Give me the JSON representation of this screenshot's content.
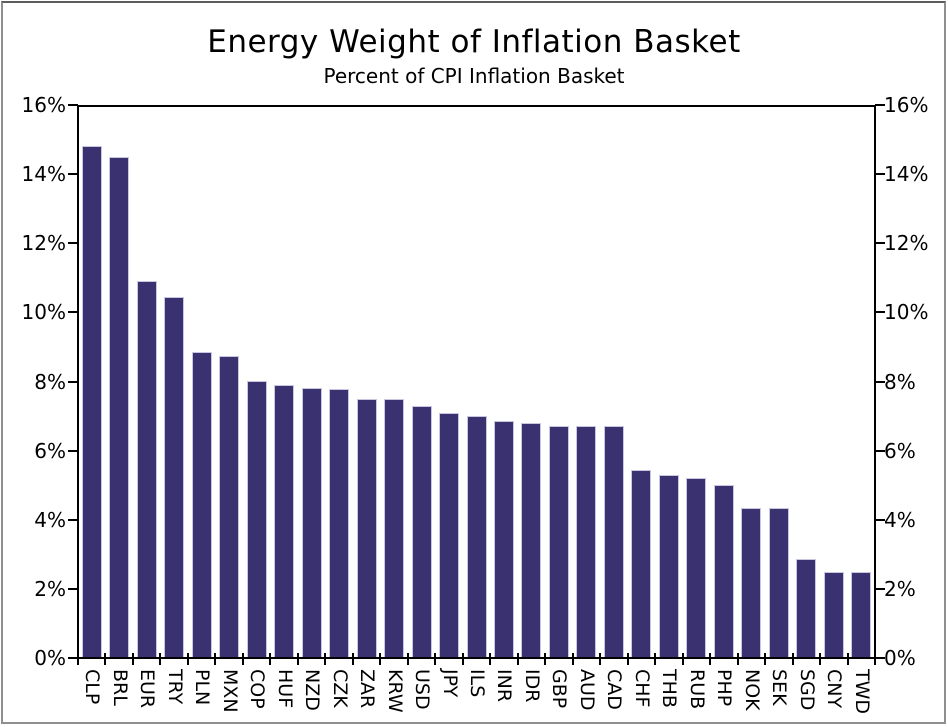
{
  "chart_data": {
    "type": "bar",
    "title": "Energy Weight of Inflation Basket",
    "subtitle": "Percent of CPI Inflation Basket",
    "categories": [
      "CLP",
      "BRL",
      "EUR",
      "TRY",
      "PLN",
      "MXN",
      "COP",
      "HUF",
      "NZD",
      "CZK",
      "ZAR",
      "KRW",
      "USD",
      "JPY",
      "ILS",
      "INR",
      "IDR",
      "GBP",
      "AUD",
      "CAD",
      "CHF",
      "THB",
      "RUB",
      "PHP",
      "NOK",
      "SEK",
      "SGD",
      "CNY",
      "TWD"
    ],
    "values": [
      14.8,
      14.5,
      10.9,
      10.45,
      8.85,
      8.75,
      8.0,
      7.9,
      7.8,
      7.78,
      7.5,
      7.48,
      7.3,
      7.1,
      7.0,
      6.85,
      6.8,
      6.72,
      6.7,
      6.7,
      5.45,
      5.3,
      5.2,
      5.0,
      4.35,
      4.35,
      2.85,
      2.5,
      2.5
    ],
    "value_unit": "%",
    "xlabel": "",
    "ylabel": "",
    "ylim": [
      0,
      16
    ],
    "ytick_step": 2,
    "ytick_labels": [
      "0%",
      "2%",
      "4%",
      "6%",
      "8%",
      "10%",
      "12%",
      "14%",
      "16%"
    ],
    "y_axis_sides": [
      "left",
      "right"
    ],
    "x_label_rotation_deg": 90,
    "grid": false,
    "legend": "none",
    "colors": {
      "bar_fill": "#3A3270",
      "bar_edge": "#C9C6DF",
      "axis": "#000000",
      "text": "#000000",
      "canvas_border": "#8f8f8f"
    }
  }
}
